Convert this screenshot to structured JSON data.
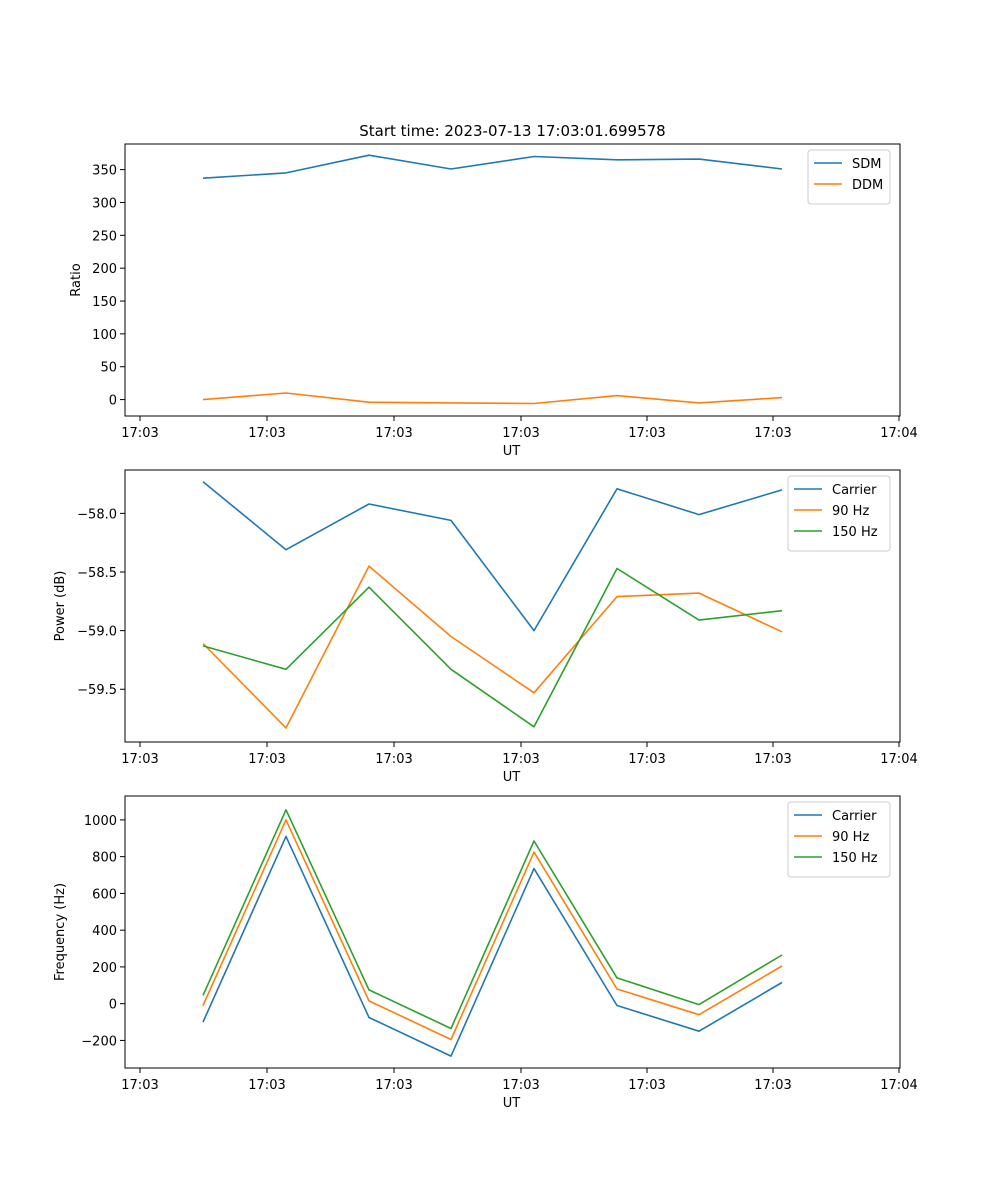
{
  "chart_data": [
    {
      "type": "line",
      "title": "Start time: 2023-07-13 17:03:01.699578",
      "xlabel": "UT",
      "ylabel": "Ratio",
      "x_tick_labels": [
        "17:03",
        "17:03",
        "17:03",
        "17:03",
        "17:03",
        "17:03",
        "17:04"
      ],
      "y_ticks": [
        0,
        50,
        100,
        150,
        200,
        250,
        300,
        350
      ],
      "ylim": [
        -25,
        389
      ],
      "legend_position": "upper-right",
      "series": [
        {
          "name": "SDM",
          "color": "#1f77b4",
          "values": [
            337,
            345,
            372,
            351,
            370,
            365,
            366,
            351
          ]
        },
        {
          "name": "DDM",
          "color": "#ff7f0e",
          "values": [
            0,
            10,
            -4,
            -5,
            -6,
            6,
            -5,
            3
          ]
        }
      ]
    },
    {
      "type": "line",
      "title": "",
      "xlabel": "UT",
      "ylabel": "Power (dB)",
      "x_tick_labels": [
        "17:03",
        "17:03",
        "17:03",
        "17:03",
        "17:03",
        "17:03",
        "17:04"
      ],
      "y_ticks": [
        -58.0,
        -58.5,
        -59.0,
        -59.5
      ],
      "y_tick_labels": [
        "−58.0",
        "−58.5",
        "−59.0",
        "−59.5"
      ],
      "ylim": [
        -59.95,
        -57.63
      ],
      "legend_position": "upper-right",
      "series": [
        {
          "name": "Carrier",
          "color": "#1f77b4",
          "values": [
            -57.73,
            -58.31,
            -57.92,
            -58.06,
            -59.0,
            -57.79,
            -58.01,
            -57.8
          ]
        },
        {
          "name": "90 Hz",
          "color": "#ff7f0e",
          "values": [
            -59.11,
            -59.83,
            -58.45,
            -59.05,
            -59.53,
            -58.71,
            -58.68,
            -59.01
          ]
        },
        {
          "name": "150 Hz",
          "color": "#2ca02c",
          "values": [
            -59.13,
            -59.33,
            -58.63,
            -59.33,
            -59.82,
            -58.47,
            -58.91,
            -58.83
          ]
        }
      ]
    },
    {
      "type": "line",
      "title": "",
      "xlabel": "UT",
      "ylabel": "Frequency (Hz)",
      "x_tick_labels": [
        "17:03",
        "17:03",
        "17:03",
        "17:03",
        "17:03",
        "17:03",
        "17:04"
      ],
      "y_ticks": [
        -200,
        0,
        200,
        400,
        600,
        800,
        1000
      ],
      "y_tick_labels": [
        "−200",
        "0",
        "200",
        "400",
        "600",
        "800",
        "1000"
      ],
      "ylim": [
        -350,
        1130
      ],
      "legend_position": "upper-right",
      "series": [
        {
          "name": "Carrier",
          "color": "#1f77b4",
          "values": [
            -100,
            910,
            -75,
            -285,
            735,
            -10,
            -150,
            115
          ]
        },
        {
          "name": "90 Hz",
          "color": "#ff7f0e",
          "values": [
            -10,
            1000,
            15,
            -195,
            825,
            80,
            -60,
            205
          ]
        },
        {
          "name": "150 Hz",
          "color": "#2ca02c",
          "values": [
            45,
            1055,
            75,
            -135,
            885,
            140,
            -5,
            265
          ]
        }
      ]
    }
  ]
}
